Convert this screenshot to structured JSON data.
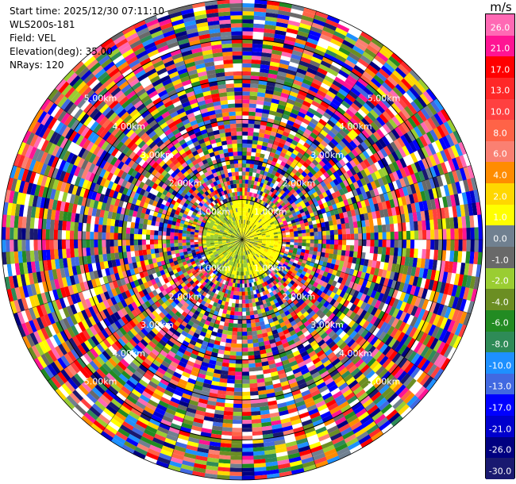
{
  "info": {
    "start_time": "Start time: 2025/12/30 07:11:10",
    "device": "WLS200s-181",
    "field": "Field: VEL",
    "elevation": "Elevation(deg): 35.00",
    "nrays": "NRays: 120"
  },
  "chart_data": {
    "type": "heatmap",
    "projection": "polar-ppi",
    "field": "VEL",
    "unit": "m/s",
    "nrays": 120,
    "elevation_deg": 35.0,
    "range_rings_km": [
      1.0,
      2.0,
      3.0,
      4.0,
      5.0
    ],
    "ring_labels": [
      "1.00km",
      "2.00km",
      "3.00km",
      "4.00km",
      "5.00km"
    ],
    "max_range_km": 6.0,
    "colorbar": {
      "ticks": [
        "26.0",
        "21.0",
        "17.0",
        "13.0",
        "10.0",
        "8.0",
        "6.0",
        "4.0",
        "2.0",
        "1.0",
        "0.0",
        "-1.0",
        "-2.0",
        "-4.0",
        "-6.0",
        "-8.0",
        "-10.0",
        "-13.0",
        "-17.0",
        "-21.0",
        "-26.0",
        "-30.0"
      ],
      "colors": [
        "#ff69b4",
        "#ff1493",
        "#ff0000",
        "#ff2828",
        "#ff4040",
        "#ff6347",
        "#fa8072",
        "#ff8c00",
        "#ffd700",
        "#ffff00",
        "#708090",
        "#696969",
        "#9acd32",
        "#6b8e23",
        "#228b22",
        "#2e8b57",
        "#1e90ff",
        "#4169e1",
        "#0000ff",
        "#0000cd",
        "#000080",
        "#191970"
      ]
    },
    "near_field": {
      "max_range_km": 1.0,
      "colors": [
        "#ffff00",
        "#ffff00",
        "#ffd700",
        "#9acd32",
        "#6b8e23",
        "#708090",
        "#ffff00"
      ]
    },
    "seed": 181
  }
}
